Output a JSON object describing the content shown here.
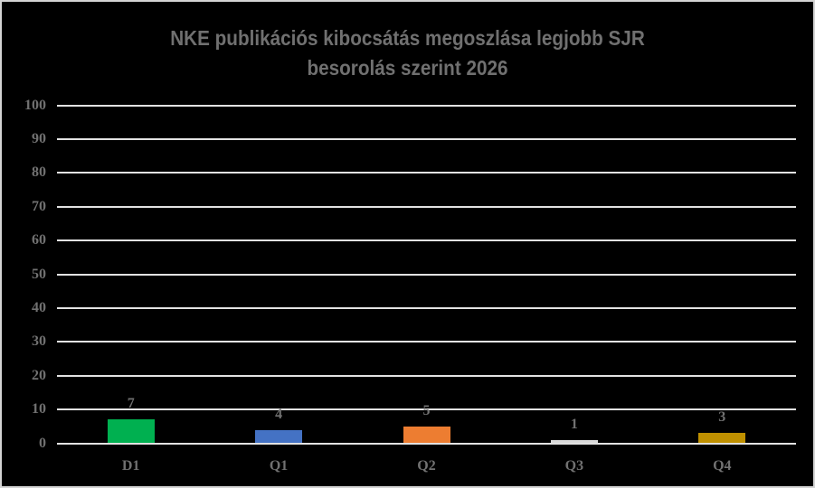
{
  "chart_data": {
    "type": "bar",
    "title": "NKE publikációs kibocsátás megoszlása legjobb SJR besorolás szerint 2026",
    "title_lines": [
      "NKE publikációs kibocsátás megoszlása legjobb SJR",
      "besorolás szerint 2026"
    ],
    "categories": [
      "D1",
      "Q1",
      "Q2",
      "Q3",
      "Q4"
    ],
    "values": [
      7,
      4,
      5,
      1,
      3
    ],
    "bar_colors": [
      "#00B050",
      "#4472C4",
      "#ED7D31",
      "#D9D9D9",
      "#BF9000"
    ],
    "data_labels": [
      7,
      4,
      5,
      1,
      3
    ],
    "ylim": [
      0,
      100
    ],
    "yticks": [
      0,
      10,
      20,
      30,
      40,
      50,
      60,
      70,
      80,
      90,
      100
    ],
    "grid": true,
    "legend": "none",
    "xlabel": "",
    "ylabel": ""
  },
  "style": {
    "background": "#000000",
    "border_color": "#D4D4D4",
    "title_color": "#707070",
    "label_color": "#717171",
    "gridline_color": "#E2E2E2"
  }
}
